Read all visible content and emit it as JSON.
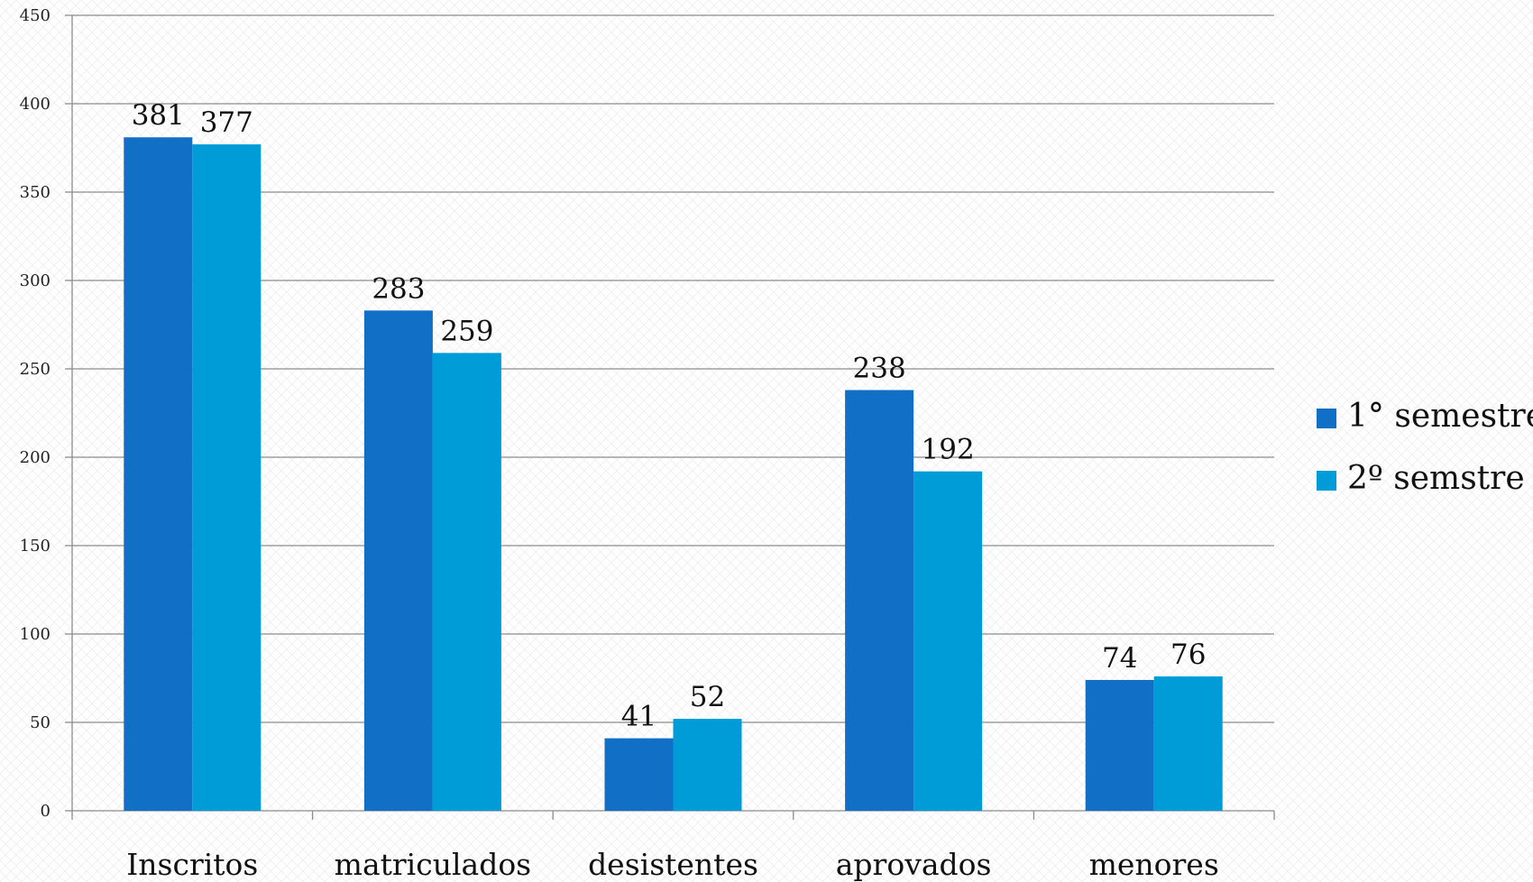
{
  "chart_data": {
    "type": "bar",
    "title": "",
    "xlabel": "",
    "ylabel": "",
    "categories": [
      "Inscritos",
      "matriculados",
      "desistentes",
      "aprovados",
      "menores"
    ],
    "series": [
      {
        "name": "1° semestre",
        "color": "#1170C6",
        "values": [
          381,
          283,
          41,
          238,
          74
        ]
      },
      {
        "name": "2º semstre",
        "color": "#009CD8",
        "values": [
          377,
          259,
          52,
          192,
          76
        ]
      }
    ],
    "ylim": [
      0,
      450
    ],
    "yticks": [
      "0",
      "50",
      "100",
      "150",
      "200",
      "250",
      "300",
      "350",
      "400",
      "450"
    ],
    "grid": true,
    "legend_position": "right",
    "data_labels": true
  }
}
